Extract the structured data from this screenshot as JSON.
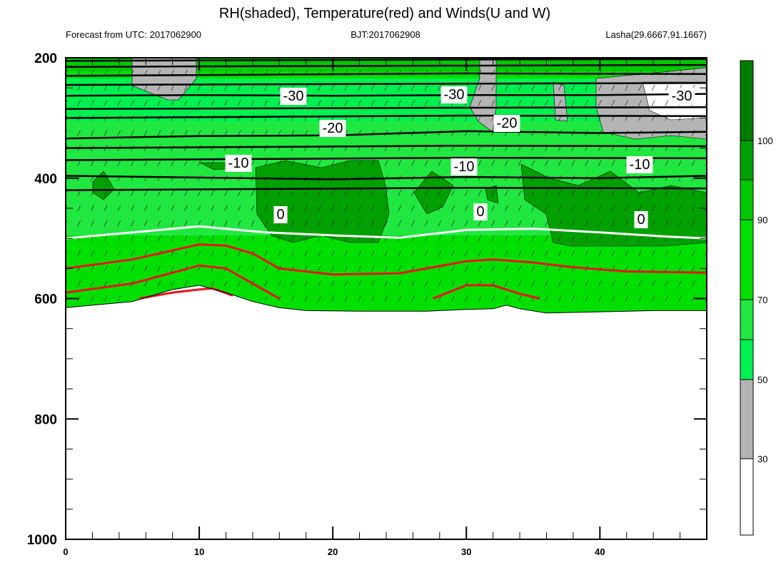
{
  "chart_data": {
    "type": "heatmap",
    "title": "RH(shaded), Temperature(red) and Winds(U and W)",
    "subtitle_left": "Forecast from UTC: 2017062900",
    "subtitle_center": "BJT:2017062908",
    "subtitle_right": "Lasha(29.6667,91.1667)",
    "xlabel": "",
    "ylabel": "",
    "xlim": [
      0,
      48
    ],
    "ylim": [
      1000,
      200
    ],
    "x_ticks": [
      0,
      10,
      20,
      30,
      40
    ],
    "y_ticks": [
      200,
      400,
      600,
      800,
      1000
    ],
    "colorbar": {
      "ticks": [
        "30",
        "50",
        "70",
        "90",
        "100"
      ],
      "levels": [
        {
          "range": [
            0,
            30
          ],
          "color": "#ffffff"
        },
        {
          "range": [
            30,
            50
          ],
          "color": "#b4b4b4"
        },
        {
          "range": [
            50,
            60
          ],
          "color": "#00f050"
        },
        {
          "range": [
            60,
            70
          ],
          "color": "#20e840"
        },
        {
          "range": [
            70,
            80
          ],
          "color": "#00e000"
        },
        {
          "range": [
            80,
            90
          ],
          "color": "#00c800"
        },
        {
          "range": [
            90,
            95
          ],
          "color": "#00a000"
        },
        {
          "range": [
            95,
            100
          ],
          "color": "#007c00"
        }
      ]
    },
    "surface_pressure": [
      [
        0,
        615
      ],
      [
        5,
        605
      ],
      [
        8,
        585
      ],
      [
        10,
        578
      ],
      [
        12,
        590
      ],
      [
        14,
        605
      ],
      [
        16,
        615
      ],
      [
        18,
        620
      ],
      [
        22,
        621
      ],
      [
        27,
        621
      ],
      [
        30,
        618
      ],
      [
        32,
        617
      ],
      [
        33,
        611
      ],
      [
        34,
        617
      ],
      [
        36,
        624
      ],
      [
        40,
        622
      ],
      [
        44,
        620
      ],
      [
        48,
        620
      ]
    ],
    "temperature_contours": [
      {
        "label": "-30",
        "points": [
          [
            0,
            263
          ],
          [
            10,
            262
          ],
          [
            20,
            263
          ],
          [
            30,
            262
          ],
          [
            40,
            262
          ],
          [
            48,
            260
          ]
        ],
        "label_positions": [
          [
            17,
            267
          ],
          [
            29,
            267
          ],
          [
            46,
            267
          ]
        ]
      },
      {
        "label": "-20",
        "points": [
          [
            0,
            334
          ],
          [
            10,
            330
          ],
          [
            20,
            329
          ],
          [
            30,
            322
          ],
          [
            40,
            325
          ],
          [
            48,
            323
          ]
        ],
        "label_positions": [
          [
            20,
            329
          ],
          [
            33,
            322
          ]
        ]
      },
      {
        "label": "-10",
        "points": [
          [
            0,
            396
          ],
          [
            10,
            399
          ],
          [
            20,
            402
          ],
          [
            30,
            398
          ],
          [
            40,
            400
          ],
          [
            48,
            396
          ]
        ],
        "label_positions": [
          [
            13,
            397
          ],
          [
            29,
            400
          ],
          [
            43,
            397
          ]
        ]
      },
      {
        "label": "0",
        "points": [
          [
            0,
            500
          ],
          [
            5,
            490
          ],
          [
            10,
            480
          ],
          [
            15,
            490
          ],
          [
            20,
            495
          ],
          [
            25,
            499
          ],
          [
            30,
            486
          ],
          [
            35,
            484
          ],
          [
            40,
            490
          ],
          [
            45,
            497
          ],
          [
            48,
            500
          ]
        ],
        "label_positions": [
          [
            16,
            491
          ],
          [
            31,
            486
          ],
          [
            43,
            497
          ]
        ]
      }
    ],
    "red_contours": [
      {
        "points": [
          [
            0,
            550
          ],
          [
            5,
            535
          ],
          [
            10,
            510
          ],
          [
            12,
            512
          ],
          [
            14,
            525
          ],
          [
            16,
            550
          ],
          [
            20,
            560
          ],
          [
            25,
            558
          ],
          [
            30,
            538
          ],
          [
            32,
            535
          ],
          [
            35,
            540
          ],
          [
            38,
            548
          ],
          [
            42,
            555
          ],
          [
            48,
            557
          ]
        ]
      },
      {
        "points": [
          [
            0,
            590
          ],
          [
            5,
            575
          ],
          [
            10,
            545
          ],
          [
            12,
            550
          ],
          [
            14,
            575
          ],
          [
            16,
            600
          ]
        ]
      },
      {
        "points": [
          [
            5.5,
            600
          ],
          [
            8,
            590
          ],
          [
            10,
            585
          ],
          [
            11,
            583
          ],
          [
            12.5,
            595
          ]
        ]
      },
      {
        "points": [
          [
            27.5,
            600
          ],
          [
            30,
            578
          ],
          [
            32,
            578
          ],
          [
            34,
            592
          ],
          [
            35.5,
            600
          ]
        ]
      }
    ]
  }
}
